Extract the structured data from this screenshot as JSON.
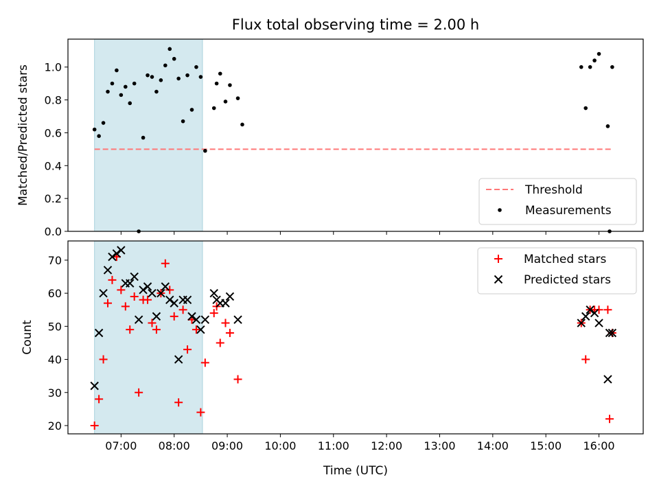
{
  "figure": {
    "title": "Flux total observing time = 2.00 h"
  },
  "chart_data": [
    {
      "type": "scatter",
      "panel": "top",
      "title": "Flux total observing time = 2.00 h",
      "xlabel": "",
      "ylabel": "Matched/Predicted stars",
      "ylim": [
        0,
        1.17
      ],
      "yticks": [
        0.0,
        0.2,
        0.4,
        0.6,
        0.8,
        1.0
      ],
      "ytick_labels": [
        "0.0",
        "0.2",
        "0.4",
        "0.6",
        "0.8",
        "1.0"
      ],
      "legend": {
        "placement": "lower-right",
        "entries": [
          "Threshold",
          "Measurements"
        ]
      },
      "highlight_span": {
        "x": [
          "06:30",
          "08:32"
        ],
        "color": "#d4e9ef"
      },
      "threshold": {
        "name": "Threshold",
        "value": 0.5,
        "x": [
          "06:30",
          "16:15"
        ],
        "color": "#ff7777",
        "style": "dashed"
      },
      "series": [
        {
          "name": "Measurements",
          "color": "#000000",
          "points": [
            [
              "06:30",
              0.62
            ],
            [
              "06:35",
              0.58
            ],
            [
              "06:40",
              0.66
            ],
            [
              "06:45",
              0.85
            ],
            [
              "06:50",
              0.9
            ],
            [
              "06:55",
              0.98
            ],
            [
              "07:00",
              0.83
            ],
            [
              "07:05",
              0.88
            ],
            [
              "07:10",
              0.78
            ],
            [
              "07:15",
              0.9
            ],
            [
              "07:20",
              0.0
            ],
            [
              "07:25",
              0.57
            ],
            [
              "07:30",
              0.95
            ],
            [
              "07:35",
              0.94
            ],
            [
              "07:40",
              0.85
            ],
            [
              "07:45",
              0.92
            ],
            [
              "07:50",
              1.01
            ],
            [
              "07:55",
              1.11
            ],
            [
              "08:00",
              1.05
            ],
            [
              "08:05",
              0.93
            ],
            [
              "08:10",
              0.67
            ],
            [
              "08:15",
              0.95
            ],
            [
              "08:20",
              0.74
            ],
            [
              "08:25",
              1.0
            ],
            [
              "08:30",
              0.94
            ],
            [
              "08:35",
              0.49
            ],
            [
              "08:45",
              0.75
            ],
            [
              "08:48",
              0.9
            ],
            [
              "08:52",
              0.96
            ],
            [
              "08:58",
              0.79
            ],
            [
              "09:03",
              0.89
            ],
            [
              "09:12",
              0.81
            ],
            [
              "09:17",
              0.65
            ],
            [
              "15:40",
              1.0
            ],
            [
              "15:45",
              0.75
            ],
            [
              "15:50",
              1.0
            ],
            [
              "15:55",
              1.04
            ],
            [
              "16:00",
              1.08
            ],
            [
              "16:10",
              0.64
            ],
            [
              "16:12",
              0.0
            ],
            [
              "16:15",
              1.0
            ]
          ]
        }
      ]
    },
    {
      "type": "scatter",
      "panel": "bottom",
      "xlabel": "Time (UTC)",
      "ylabel": "Count",
      "ylim": [
        17.5,
        75.8
      ],
      "yticks": [
        20,
        30,
        40,
        50,
        60,
        70
      ],
      "ytick_labels": [
        "20",
        "30",
        "40",
        "50",
        "60",
        "70"
      ],
      "xticks": [
        "07:00",
        "08:00",
        "09:00",
        "10:00",
        "11:00",
        "12:00",
        "13:00",
        "14:00",
        "15:00",
        "16:00"
      ],
      "xlim": [
        "06:00",
        "16:50"
      ],
      "legend": {
        "placement": "upper-right",
        "entries": [
          "Matched stars",
          "Predicted stars"
        ]
      },
      "highlight_span": {
        "x": [
          "06:30",
          "08:32"
        ],
        "color": "#d4e9ef"
      },
      "series": [
        {
          "name": "Matched stars",
          "marker": "plus",
          "color": "#ff0000",
          "points": [
            [
              "06:30",
              20
            ],
            [
              "06:35",
              28
            ],
            [
              "06:40",
              40
            ],
            [
              "06:45",
              57
            ],
            [
              "06:50",
              64
            ],
            [
              "06:55",
              71
            ],
            [
              "07:00",
              61
            ],
            [
              "07:05",
              56
            ],
            [
              "07:10",
              49
            ],
            [
              "07:15",
              59
            ],
            [
              "07:20",
              30
            ],
            [
              "07:25",
              58
            ],
            [
              "07:30",
              58
            ],
            [
              "07:35",
              51
            ],
            [
              "07:40",
              49
            ],
            [
              "07:45",
              60
            ],
            [
              "07:50",
              69
            ],
            [
              "07:55",
              61
            ],
            [
              "08:00",
              53
            ],
            [
              "08:05",
              27
            ],
            [
              "08:10",
              55
            ],
            [
              "08:15",
              43
            ],
            [
              "08:20",
              52
            ],
            [
              "08:25",
              49
            ],
            [
              "08:30",
              24
            ],
            [
              "08:35",
              39
            ],
            [
              "08:45",
              54
            ],
            [
              "08:48",
              56
            ],
            [
              "08:52",
              45
            ],
            [
              "08:58",
              51
            ],
            [
              "09:03",
              48
            ],
            [
              "09:12",
              34
            ],
            [
              "15:40",
              51
            ],
            [
              "15:45",
              40
            ],
            [
              "15:50",
              55
            ],
            [
              "15:55",
              55
            ],
            [
              "16:00",
              55
            ],
            [
              "16:10",
              55
            ],
            [
              "16:12",
              22
            ],
            [
              "16:15",
              48
            ]
          ]
        },
        {
          "name": "Predicted stars",
          "marker": "x",
          "color": "#000000",
          "points": [
            [
              "06:30",
              32
            ],
            [
              "06:35",
              48
            ],
            [
              "06:40",
              60
            ],
            [
              "06:45",
              67
            ],
            [
              "06:50",
              71
            ],
            [
              "06:55",
              72
            ],
            [
              "07:00",
              73
            ],
            [
              "07:05",
              63
            ],
            [
              "07:10",
              63
            ],
            [
              "07:15",
              65
            ],
            [
              "07:20",
              52
            ],
            [
              "07:25",
              61
            ],
            [
              "07:30",
              62
            ],
            [
              "07:35",
              60
            ],
            [
              "07:40",
              53
            ],
            [
              "07:45",
              60
            ],
            [
              "07:50",
              62
            ],
            [
              "07:55",
              58
            ],
            [
              "08:00",
              57
            ],
            [
              "08:05",
              40
            ],
            [
              "08:10",
              58
            ],
            [
              "08:15",
              58
            ],
            [
              "08:20",
              53
            ],
            [
              "08:25",
              52
            ],
            [
              "08:30",
              49
            ],
            [
              "08:35",
              52
            ],
            [
              "08:45",
              60
            ],
            [
              "08:48",
              58
            ],
            [
              "08:52",
              57
            ],
            [
              "08:58",
              57
            ],
            [
              "09:03",
              59
            ],
            [
              "09:12",
              52
            ],
            [
              "15:40",
              51
            ],
            [
              "15:45",
              53
            ],
            [
              "15:50",
              55
            ],
            [
              "15:55",
              54
            ],
            [
              "16:00",
              51
            ],
            [
              "16:10",
              34
            ],
            [
              "16:12",
              48
            ],
            [
              "16:15",
              48
            ]
          ]
        }
      ]
    }
  ]
}
